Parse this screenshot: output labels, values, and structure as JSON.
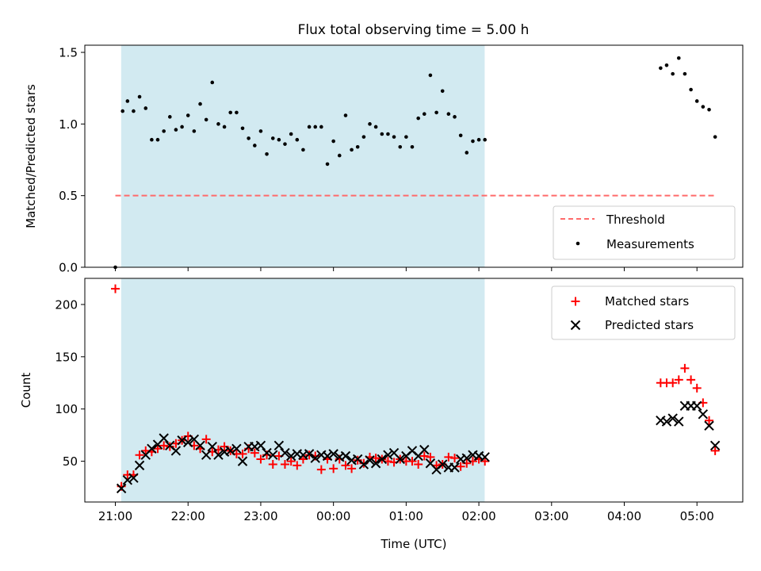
{
  "title": "Flux total observing time = 5.00 h",
  "colors": {
    "highlight": "#add8e6",
    "threshold": "#ff6b6b",
    "measurement": "#000000",
    "matched": "#ff0000",
    "predicted": "#000000"
  },
  "chart_data": [
    {
      "type": "scatter",
      "ylabel": "Matched/Predicted stars",
      "ylim": [
        0,
        1.55
      ],
      "yticks": [
        0.0,
        0.5,
        1.0,
        1.5
      ],
      "ytick_labels": [
        "0.0",
        "0.5",
        "1.0",
        "1.5"
      ],
      "x_unit": "hours since 21:00 UTC",
      "xlim": [
        -0.42,
        8.63
      ],
      "highlight_span": [
        0.08,
        5.08
      ],
      "legend_position": "lower-right",
      "legend": [
        "Threshold",
        "Measurements"
      ],
      "threshold": {
        "name": "Threshold",
        "value": 0.5,
        "x_range": [
          0.0,
          8.25
        ]
      },
      "series": [
        {
          "name": "Measurements",
          "x": [
            0.0,
            0.1,
            0.167,
            0.25,
            0.333,
            0.417,
            0.5,
            0.583,
            0.667,
            0.75,
            0.833,
            0.917,
            1.0,
            1.083,
            1.167,
            1.25,
            1.333,
            1.417,
            1.5,
            1.583,
            1.667,
            1.75,
            1.833,
            1.917,
            2.0,
            2.083,
            2.167,
            2.25,
            2.333,
            2.417,
            2.5,
            2.583,
            2.667,
            2.75,
            2.833,
            2.917,
            3.0,
            3.083,
            3.167,
            3.25,
            3.333,
            3.417,
            3.5,
            3.583,
            3.667,
            3.75,
            3.833,
            3.917,
            4.0,
            4.083,
            4.167,
            4.25,
            4.333,
            4.417,
            4.5,
            4.583,
            4.667,
            4.75,
            4.833,
            4.917,
            5.0,
            5.083,
            7.5,
            7.583,
            7.667,
            7.75,
            7.833,
            7.917,
            8.0,
            8.083,
            8.167,
            8.25
          ],
          "y": [
            0.0,
            1.09,
            1.16,
            1.09,
            1.19,
            1.11,
            0.89,
            0.89,
            0.95,
            1.05,
            0.96,
            0.98,
            1.06,
            0.95,
            1.14,
            1.03,
            1.29,
            1.0,
            0.98,
            1.08,
            1.08,
            0.97,
            0.9,
            0.85,
            0.95,
            0.79,
            0.9,
            0.89,
            0.86,
            0.93,
            0.89,
            0.82,
            0.98,
            0.98,
            0.98,
            0.72,
            0.88,
            0.78,
            1.06,
            0.82,
            0.84,
            0.91,
            1.0,
            0.98,
            0.93,
            0.93,
            0.91,
            0.84,
            0.91,
            0.84,
            1.04,
            1.07,
            1.34,
            1.08,
            1.23,
            1.07,
            1.05,
            0.92,
            0.8,
            0.88,
            0.89,
            0.89,
            1.39,
            1.41,
            1.35,
            1.46,
            1.35,
            1.24,
            1.16,
            1.12,
            1.1,
            0.91
          ]
        }
      ]
    },
    {
      "type": "scatter",
      "xlabel": "Time (UTC)",
      "ylabel": "Count",
      "ylim": [
        11,
        225
      ],
      "yticks": [
        50,
        100,
        150,
        200
      ],
      "ytick_labels": [
        "50",
        "100",
        "150",
        "200"
      ],
      "x_unit": "hours since 21:00 UTC",
      "xlim": [
        -0.42,
        8.63
      ],
      "xticks": [
        0,
        1,
        2,
        3,
        4,
        5,
        6,
        7,
        8
      ],
      "xtick_labels": [
        "21:00",
        "22:00",
        "23:00",
        "00:00",
        "01:00",
        "02:00",
        "03:00",
        "04:00",
        "05:00"
      ],
      "highlight_span": [
        0.08,
        5.08
      ],
      "legend_position": "upper-right",
      "legend": [
        "Matched stars",
        "Predicted stars"
      ],
      "series": [
        {
          "name": "Matched stars",
          "x": [
            0.0,
            0.083,
            0.167,
            0.25,
            0.333,
            0.417,
            0.5,
            0.583,
            0.667,
            0.75,
            0.833,
            0.917,
            1.0,
            1.083,
            1.167,
            1.25,
            1.333,
            1.417,
            1.5,
            1.583,
            1.667,
            1.75,
            1.833,
            1.917,
            2.0,
            2.083,
            2.167,
            2.25,
            2.333,
            2.417,
            2.5,
            2.583,
            2.667,
            2.75,
            2.833,
            2.917,
            3.0,
            3.083,
            3.167,
            3.25,
            3.333,
            3.417,
            3.5,
            3.583,
            3.667,
            3.75,
            3.833,
            3.917,
            4.0,
            4.083,
            4.167,
            4.25,
            4.333,
            4.417,
            4.5,
            4.583,
            4.667,
            4.75,
            4.833,
            4.917,
            5.0,
            5.083,
            7.5,
            7.583,
            7.667,
            7.75,
            7.833,
            7.917,
            8.0,
            8.083,
            8.167,
            8.25
          ],
          "y": [
            215,
            26,
            37,
            37,
            56,
            60,
            59,
            62,
            65,
            64,
            67,
            70,
            74,
            65,
            62,
            71,
            59,
            61,
            64,
            60,
            57,
            57,
            62,
            58,
            52,
            56,
            47,
            55,
            47,
            50,
            46,
            52,
            56,
            55,
            42,
            52,
            43,
            52,
            46,
            43,
            51,
            48,
            54,
            53,
            52,
            50,
            49,
            52,
            50,
            50,
            47,
            55,
            54,
            46,
            47,
            54,
            53,
            45,
            48,
            50,
            52,
            50,
            125,
            125,
            125,
            128,
            139,
            128,
            120,
            106,
            89,
            60
          ]
        },
        {
          "name": "Predicted stars",
          "x": [
            0.083,
            0.167,
            0.25,
            0.333,
            0.417,
            0.5,
            0.583,
            0.667,
            0.75,
            0.833,
            0.917,
            1.0,
            1.083,
            1.167,
            1.25,
            1.333,
            1.417,
            1.5,
            1.583,
            1.667,
            1.75,
            1.833,
            1.917,
            2.0,
            2.083,
            2.167,
            2.25,
            2.333,
            2.417,
            2.5,
            2.583,
            2.667,
            2.75,
            2.833,
            2.917,
            3.0,
            3.083,
            3.167,
            3.25,
            3.333,
            3.417,
            3.5,
            3.583,
            3.667,
            3.75,
            3.833,
            3.917,
            4.0,
            4.083,
            4.167,
            4.25,
            4.333,
            4.417,
            4.5,
            4.583,
            4.667,
            4.75,
            4.833,
            4.917,
            5.0,
            5.083,
            7.5,
            7.583,
            7.667,
            7.75,
            7.833,
            7.917,
            8.0,
            8.083,
            8.167,
            8.25
          ],
          "y": [
            24,
            32,
            34,
            46,
            56,
            62,
            66,
            72,
            65,
            60,
            70,
            68,
            71,
            65,
            56,
            64,
            56,
            59,
            60,
            62,
            50,
            64,
            64,
            65,
            58,
            56,
            65,
            58,
            55,
            57,
            56,
            57,
            53,
            56,
            55,
            57,
            54,
            55,
            51,
            52,
            47,
            51,
            48,
            52,
            56,
            58,
            52,
            55,
            60,
            55,
            61,
            48,
            42,
            47,
            44,
            44,
            52,
            53,
            56,
            55,
            54,
            89,
            88,
            91,
            88,
            103,
            103,
            103,
            95,
            84,
            65
          ]
        }
      ]
    }
  ]
}
